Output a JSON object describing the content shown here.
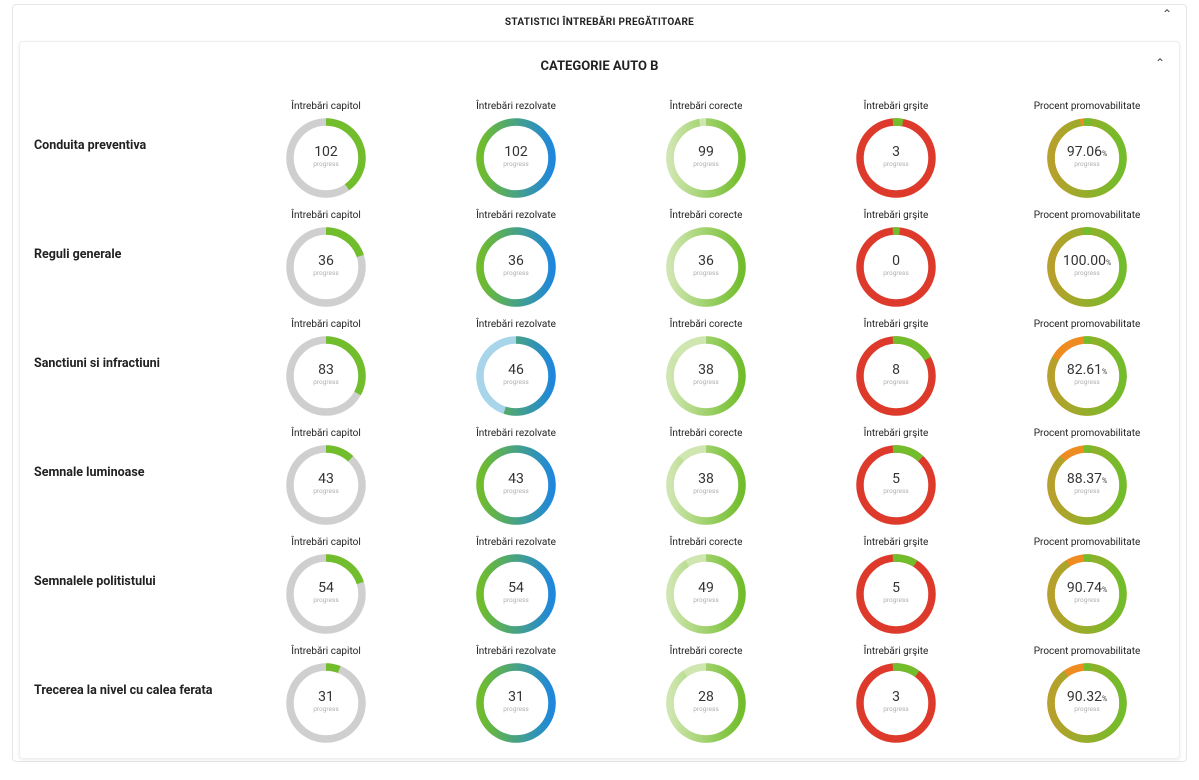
{
  "header": {
    "title": "STATISTICI ÎNTREBĂRI PREGĂTITOARE",
    "chevron_icon": "chevron-up-icon"
  },
  "section": {
    "title": "CATEGORIE AUTO B",
    "chevron_icon": "chevron-up-icon"
  },
  "column_labels": [
    "Întrebări capitol",
    "Întrebări rezolvate",
    "Întrebări corecte",
    "Întrebări grşite",
    "Procent promovabilitate"
  ],
  "progress_sublabel": "progress",
  "percent_sign": "%",
  "colors": {
    "track_gray": "#cfcfcf",
    "green": "#71bd2b",
    "green_light": "#cfe6b0",
    "blue": "#1f87dd",
    "blue_light": "#a8d5ea",
    "red": "#dd3a2c",
    "orange": "#ee8c22",
    "olive": "#b7a02b"
  },
  "rows": [
    {
      "title": "Conduita preventiva",
      "capitol": "102",
      "rezolvate": "102",
      "corecte": "99",
      "gresite": "3",
      "procent": "97.06",
      "fill": {
        "capitol": 0.4,
        "rezolvate": 1.0,
        "corecte": 0.97,
        "gresite": 0.03,
        "procent": 0.97
      }
    },
    {
      "title": "Reguli generale",
      "capitol": "36",
      "rezolvate": "36",
      "corecte": "36",
      "gresite": "0",
      "procent": "100.00",
      "fill": {
        "capitol": 0.2,
        "rezolvate": 1.0,
        "corecte": 1.0,
        "gresite": 0.0,
        "procent": 1.0
      }
    },
    {
      "title": "Sanctiuni si infractiuni",
      "capitol": "83",
      "rezolvate": "46",
      "corecte": "38",
      "gresite": "8",
      "procent": "82.61",
      "fill": {
        "capitol": 0.33,
        "rezolvate": 0.55,
        "corecte": 0.83,
        "gresite": 0.17,
        "procent": 0.83
      }
    },
    {
      "title": "Semnale luminoase",
      "capitol": "43",
      "rezolvate": "43",
      "corecte": "38",
      "gresite": "5",
      "procent": "88.37",
      "fill": {
        "capitol": 0.12,
        "rezolvate": 1.0,
        "corecte": 0.88,
        "gresite": 0.12,
        "procent": 0.88
      }
    },
    {
      "title": "Semnalele politistului",
      "capitol": "54",
      "rezolvate": "54",
      "corecte": "49",
      "gresite": "5",
      "procent": "90.74",
      "fill": {
        "capitol": 0.2,
        "rezolvate": 1.0,
        "corecte": 0.91,
        "gresite": 0.09,
        "procent": 0.91
      }
    },
    {
      "title": "Trecerea la nivel cu calea ferata",
      "capitol": "31",
      "rezolvate": "31",
      "corecte": "28",
      "gresite": "3",
      "procent": "90.32",
      "fill": {
        "capitol": 0.06,
        "rezolvate": 1.0,
        "corecte": 0.9,
        "gresite": 0.1,
        "procent": 0.9
      }
    }
  ]
}
